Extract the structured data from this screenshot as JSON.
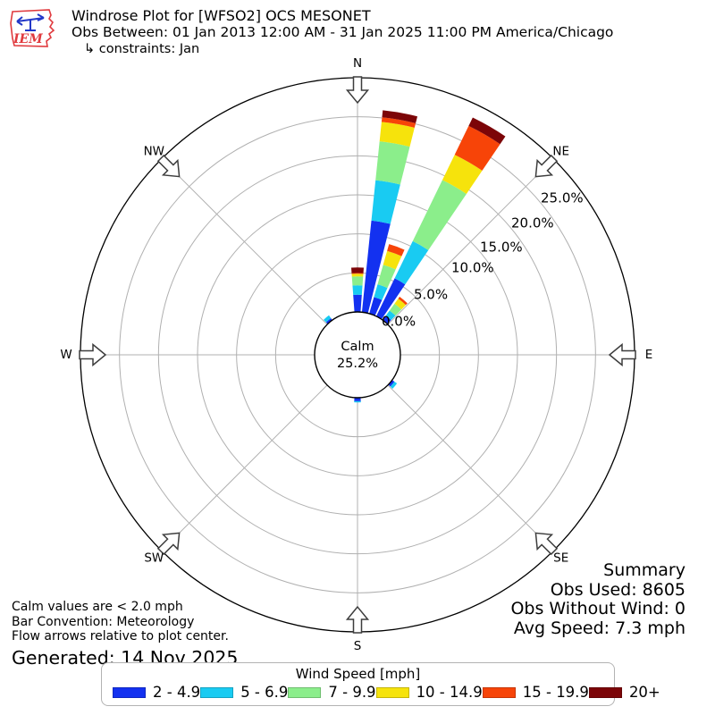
{
  "header": {
    "title": "Windrose Plot for [WFSO2] OCS MESONET",
    "subtitle": "Obs Between: 01 Jan 2013 12:00 AM - 31 Jan 2025 11:00 PM America/Chicago",
    "constraints": "↳ constraints: Jan",
    "logo_text": "IEM"
  },
  "footer": {
    "notes": [
      "Calm values are < 2.0 mph",
      "Bar Convention: Meteorology",
      "Flow arrows relative to plot center."
    ],
    "generated": "Generated: 14 Nov 2025"
  },
  "summary": {
    "title": "Summary",
    "lines": [
      "Obs Used: 8605",
      "Obs Without Wind: 0",
      "Avg Speed: 7.3 mph"
    ]
  },
  "legend": {
    "title": "Wind Speed [mph]"
  },
  "chart_data": {
    "type": "windrose",
    "units": "mph",
    "calm_label": "Calm",
    "calm_percent": 25.2,
    "sector_width_deg": 10,
    "ring_percents": [
      0,
      5,
      10,
      15,
      20,
      25
    ],
    "axis_max_percent": 30,
    "compass": [
      {
        "label": "N",
        "deg": 0
      },
      {
        "label": "NE",
        "deg": 45
      },
      {
        "label": "E",
        "deg": 90
      },
      {
        "label": "SE",
        "deg": 135
      },
      {
        "label": "S",
        "deg": 180
      },
      {
        "label": "SW",
        "deg": 225
      },
      {
        "label": "W",
        "deg": 270
      },
      {
        "label": "NW",
        "deg": 315
      }
    ],
    "speed_bins": [
      {
        "label": "2 - 4.9",
        "color": "#1331f0"
      },
      {
        "label": "5 - 6.9",
        "color": "#19cbf2"
      },
      {
        "label": "7 - 9.9",
        "color": "#8bee8b"
      },
      {
        "label": "10 - 14.9",
        "color": "#f6e30c"
      },
      {
        "label": "15 - 19.9",
        "color": "#f74408"
      },
      {
        "label": "20+",
        "color": "#7c0508"
      }
    ],
    "bars": [
      {
        "dir_deg": 0,
        "percents": [
          2.2,
          1.2,
          1.15,
          0.35,
          0.1,
          0.7
        ]
      },
      {
        "dir_deg": 10,
        "percents": [
          11.8,
          5.2,
          5.0,
          2.5,
          0.6,
          0.9
        ]
      },
      {
        "dir_deg": 20,
        "percents": [
          2.2,
          1.7,
          2.6,
          1.85,
          0.9,
          0
        ]
      },
      {
        "dir_deg": 30,
        "percents": [
          5.4,
          5.3,
          8.7,
          3.6,
          4.1,
          1.2
        ]
      },
      {
        "dir_deg": 40,
        "percents": [
          0.7,
          0.8,
          1.1,
          0.8,
          0.3,
          0
        ]
      },
      {
        "dir_deg": 130,
        "percents": [
          0.35,
          0.4,
          0,
          0,
          0,
          0
        ]
      },
      {
        "dir_deg": 180,
        "percents": [
          0.45,
          0.15,
          0,
          0,
          0,
          0
        ]
      },
      {
        "dir_deg": 320,
        "percents": [
          0.3,
          0.45,
          0,
          0,
          0,
          0
        ]
      }
    ]
  }
}
